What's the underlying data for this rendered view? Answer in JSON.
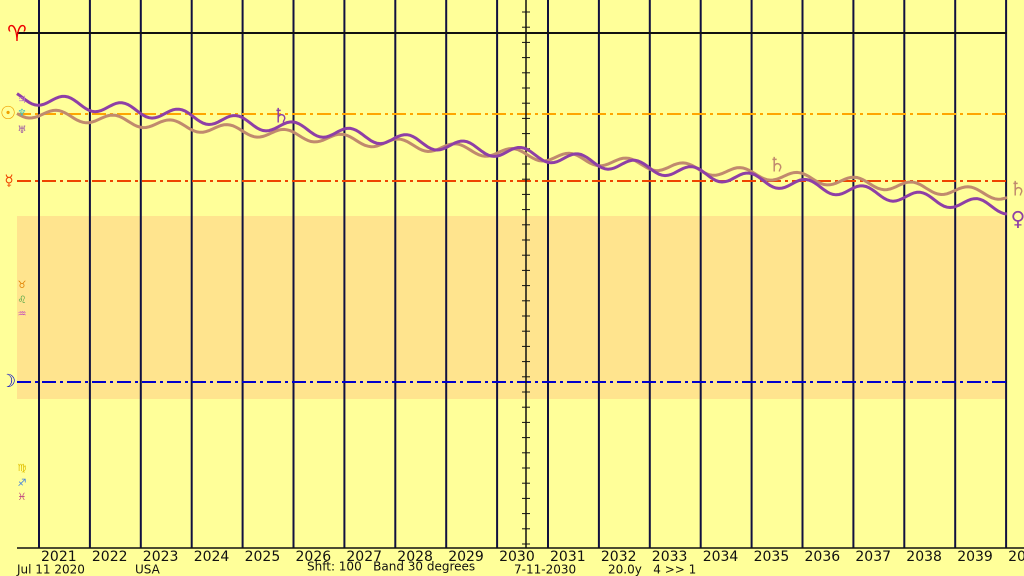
{
  "left_glyphs": {
    "aries": "♈",
    "sun": "☉",
    "mercury": "☿",
    "moon": "☽",
    "small_top": [
      "♃",
      "♆",
      "♅"
    ],
    "small_mid": [
      "♉",
      "♌",
      "♒"
    ],
    "small_low": [
      "♍",
      "♐",
      "♓"
    ]
  },
  "curve_glyphs": {
    "saturn_a": "♄",
    "saturn_b": "♄",
    "right_tan": "♄",
    "right_purple": "♀"
  },
  "years": [
    "2021",
    "2022",
    "2023",
    "2024",
    "2025",
    "2026",
    "2027",
    "2028",
    "2029",
    "2030",
    "2031",
    "2032",
    "2033",
    "2034",
    "2035",
    "2036",
    "2037",
    "2038",
    "2039",
    "20"
  ],
  "footer": {
    "date": "Jul 11 2020",
    "place": "USA",
    "settings": "Shft: 100   Band 30 degrees",
    "end_date": "7-11-2030",
    "span": "20.0y   4 >> 1"
  }
}
